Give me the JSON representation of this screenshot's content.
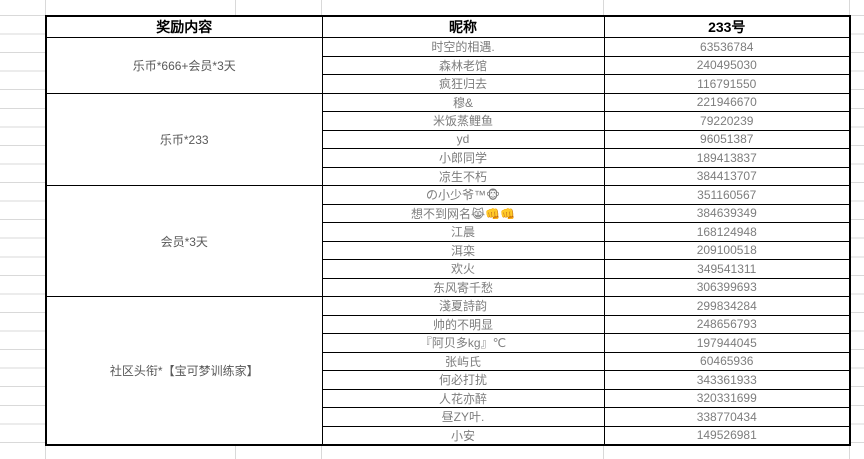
{
  "table": {
    "headers": [
      "奖励内容",
      "昵称",
      "233号"
    ],
    "groups": [
      {
        "reward": "乐币*666+会员*3天",
        "winners": [
          {
            "nickname": "时空的相遇.",
            "id": "63536784"
          },
          {
            "nickname": "森林老馆",
            "id": "240495030"
          },
          {
            "nickname": "疯狂归去",
            "id": "116791550"
          }
        ]
      },
      {
        "reward": "乐币*233",
        "winners": [
          {
            "nickname": "穆&",
            "id": "221946670"
          },
          {
            "nickname": "米饭蒸鲤鱼",
            "id": "79220239"
          },
          {
            "nickname": "yd",
            "id": "96051387"
          },
          {
            "nickname": "小郎同学",
            "id": "189413837"
          },
          {
            "nickname": "凉生不朽",
            "id": "384413707"
          }
        ]
      },
      {
        "reward": "会员*3天",
        "winners": [
          {
            "nickname": "の小少爷™🐵",
            "id": "351160567"
          },
          {
            "nickname": "想不到网名😹👊👊",
            "id": "384639349"
          },
          {
            "nickname": "江晨",
            "id": "168124948"
          },
          {
            "nickname": "洱栾",
            "id": "209100518"
          },
          {
            "nickname": "欢火",
            "id": "349541311"
          },
          {
            "nickname": "东风寄千愁",
            "id": "306399693"
          }
        ]
      },
      {
        "reward": "社区头衔*【宝可梦训练家】",
        "winners": [
          {
            "nickname": "淺夏詩韵",
            "id": "299834284"
          },
          {
            "nickname": "帅的不明显",
            "id": "248656793"
          },
          {
            "nickname": "『阿贝多kg』℃",
            "id": "197944045"
          },
          {
            "nickname": "张屿氏",
            "id": "60465936"
          },
          {
            "nickname": "何必打扰",
            "id": "343361933"
          },
          {
            "nickname": "人花亦醉",
            "id": "320331699"
          },
          {
            "nickname": "昼ZY叶.",
            "id": "338770434"
          },
          {
            "nickname": "小安",
            "id": "149526981"
          }
        ]
      }
    ]
  }
}
